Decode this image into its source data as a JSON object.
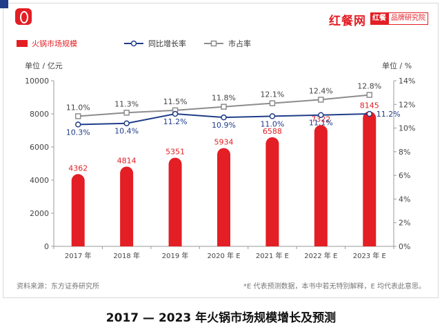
{
  "brand": {
    "name": "红餐网",
    "badge_left": "红餐",
    "badge_right": "品牌研究院"
  },
  "colors": {
    "bar": "#e31e24",
    "yoy_line": "#1f3c88",
    "share_line": "#8c8c8c",
    "corner": "#1f3c88"
  },
  "chart_data": {
    "type": "bar",
    "categories": [
      "2017 年",
      "2018 年",
      "2019 年",
      "2020 年 E",
      "2021 年 E",
      "2022 年 E",
      "2023 年 E"
    ],
    "series": [
      {
        "name": "火锅市场规模",
        "type": "bar",
        "axis": "left",
        "values": [
          4362,
          4814,
          5351,
          5934,
          6588,
          7322,
          8145
        ],
        "labels": [
          "4362",
          "4814",
          "5351",
          "5934",
          "6588",
          "7322",
          "8145"
        ]
      },
      {
        "name": "同比增长率",
        "type": "line",
        "axis": "right",
        "values": [
          10.3,
          10.4,
          11.2,
          10.9,
          11.0,
          11.1,
          11.2
        ],
        "labels": [
          "10.3%",
          "10.4%",
          "11.2%",
          "10.9%",
          "11.0%",
          "11.1%",
          "11.2%"
        ]
      },
      {
        "name": "市占率",
        "type": "line",
        "axis": "right",
        "values": [
          11.0,
          11.3,
          11.5,
          11.8,
          12.1,
          12.4,
          12.8
        ],
        "labels": [
          "11.0%",
          "11.3%",
          "11.5%",
          "11.8%",
          "12.1%",
          "12.4%",
          "12.8%"
        ]
      }
    ],
    "yleft": {
      "label": "单位 / 亿元",
      "min": 0,
      "max": 10000,
      "ticks": [
        "0",
        "2000",
        "4000",
        "6000",
        "8000",
        "10000"
      ]
    },
    "yright": {
      "label": "单位 / %",
      "min": 0,
      "max": 14,
      "ticks": [
        "0%",
        "2%",
        "4%",
        "6%",
        "8%",
        "10%",
        "12%",
        "14%"
      ]
    },
    "legend_position": "top-left",
    "grid": false
  },
  "footer": {
    "source": "资料来源：东方证券研究所",
    "note": "*E 代表预测数据，本书中若无特别解释，E 均代表此意思。"
  },
  "caption": "2017 — 2023 年火锅市场规模增长及预测"
}
